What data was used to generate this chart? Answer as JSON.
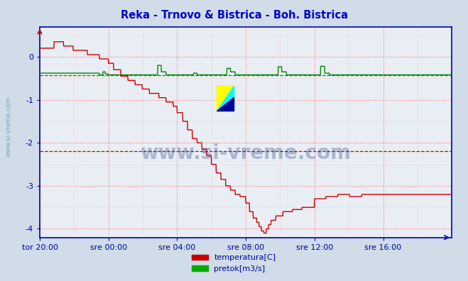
{
  "title": "Reka - Trnovo & Bistrica - Boh. Bistrica",
  "title_color": "#0000cc",
  "bg_color": "#d0dce8",
  "plot_bg_color": "#e8eef4",
  "grid_major_color": "#ff8888",
  "grid_minor_color": "#ffbbbb",
  "axis_color": "#0000bb",
  "tick_color": "#0000aa",
  "ylim": [
    -4.2,
    0.7
  ],
  "yticks": [
    -4,
    -3,
    -2,
    -1,
    0
  ],
  "xtick_labels": [
    "tor 20:00",
    "sre 00:00",
    "sre 04:00",
    "sre 08:00",
    "sre 12:00",
    "sre 16:00"
  ],
  "xtick_positions": [
    0,
    288,
    576,
    864,
    1152,
    1440
  ],
  "total_points": 1728,
  "hline_red_y": -2.2,
  "hline_green_y": -0.42,
  "watermark_text": "www.si-vreme.com",
  "watermark_color": "#1a3a8a",
  "watermark_alpha": 0.3,
  "legend_items": [
    {
      "label": "temperatura[C]",
      "color": "#cc0000"
    },
    {
      "label": "pretok[m3/s]",
      "color": "#00aa00"
    }
  ],
  "temp_color": "#cc0000",
  "flow_color": "#008800",
  "sidewater_color": "#6699aa",
  "title_fontsize": 10.5,
  "tick_fontsize": 8
}
